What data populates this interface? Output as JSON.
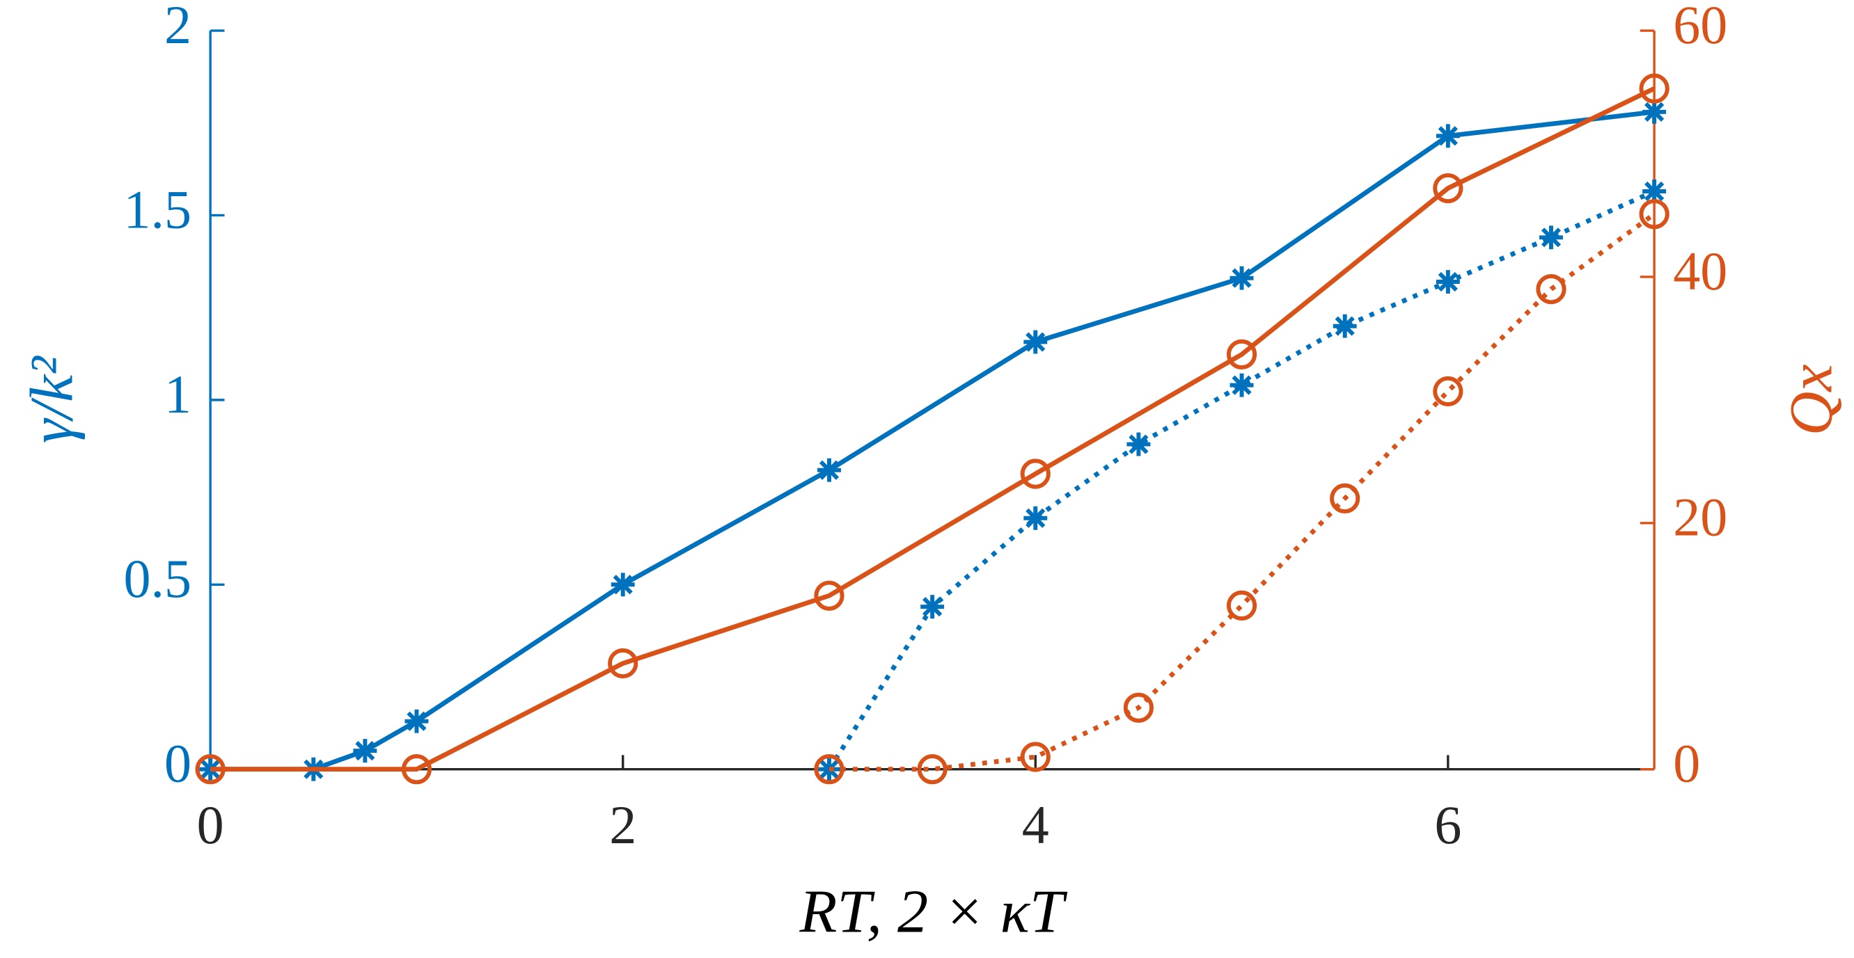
{
  "chart_data": {
    "type": "line",
    "xlabel": "RT, 2 × κT",
    "ylabel": "γ/k²",
    "y2label": "Qx",
    "xlim": [
      0,
      7
    ],
    "xticks": [
      0,
      2,
      4,
      6
    ],
    "ylim": [
      0,
      2
    ],
    "yticks": [
      0,
      0.5,
      1,
      1.5,
      2
    ],
    "y2lim": [
      0,
      60
    ],
    "y2ticks": [
      0,
      20,
      40,
      60
    ],
    "ycolor": "#0072BD",
    "y2color": "#D95319",
    "series": [
      {
        "color": "#0072BD",
        "marker": "asterisk",
        "linestyle": "solid",
        "x": [
          0,
          0.5,
          0.75,
          1,
          2,
          3,
          4,
          5,
          6,
          7
        ],
        "values": [
          0,
          0,
          0.05,
          0.13,
          0.5,
          0.81,
          1.157,
          1.33,
          1.715,
          1.78
        ]
      },
      {
        "color": "#0072BD",
        "marker": "asterisk",
        "linestyle": "dotted",
        "x": [
          3,
          3.5,
          4,
          4.5,
          5,
          5.5,
          6,
          6.5,
          7
        ],
        "values": [
          0,
          0.44,
          0.68,
          0.88,
          1.04,
          1.2,
          1.32,
          1.44,
          1.565
        ]
      },
      {
        "color": "#D95319",
        "marker": "circle",
        "linestyle": "solid",
        "axis": "y2",
        "x": [
          0,
          1,
          2,
          3,
          4,
          5,
          6,
          7
        ],
        "values": [
          0,
          0,
          8.6,
          14.1,
          24,
          33.7,
          47.2,
          55.3
        ]
      },
      {
        "color": "#D95319",
        "marker": "circle",
        "linestyle": "dotted",
        "axis": "y2",
        "x": [
          3,
          3.5,
          4,
          4.5,
          5,
          5.5,
          6,
          6.5,
          7
        ],
        "values": [
          0,
          0,
          1,
          5,
          13.3,
          22,
          30.7,
          39,
          45.1
        ]
      }
    ]
  }
}
